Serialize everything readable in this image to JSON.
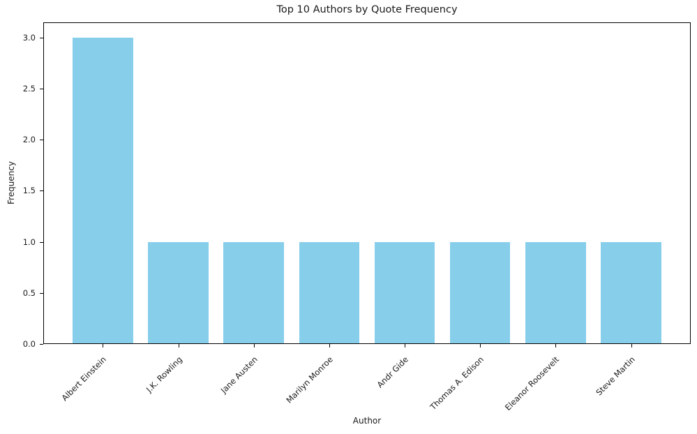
{
  "chart_data": {
    "type": "bar",
    "title": "Top 10 Authors by Quote Frequency",
    "xlabel": "Author",
    "ylabel": "Frequency",
    "categories": [
      "Albert Einstein",
      "J.K. Rowling",
      "Jane Austen",
      "Marilyn Monroe",
      "Andr Gide",
      "Thomas A. Edison",
      "Eleanor Roosevelt",
      "Steve Martin"
    ],
    "values": [
      3,
      1,
      1,
      1,
      1,
      1,
      1,
      1
    ],
    "ytick_labels": [
      "0.0",
      "0.5",
      "1.0",
      "1.5",
      "2.0",
      "2.5",
      "3.0"
    ],
    "yticks": [
      0.0,
      0.5,
      1.0,
      1.5,
      2.0,
      2.5,
      3.0
    ],
    "ylim": [
      0,
      3.15
    ],
    "bar_color": "#87CEEB",
    "axis_color": "#000000",
    "grid": false,
    "legend": "none",
    "x_tick_rotation": 45
  }
}
